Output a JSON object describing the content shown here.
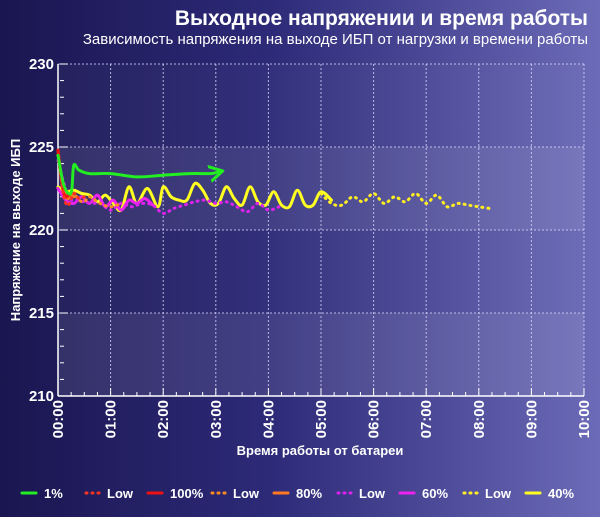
{
  "chart_data": {
    "type": "line",
    "title": "Выходное напряжении и время работы",
    "subtitle": "Зависимость напряжения на выходе ИБП от нагрузки и времени работы",
    "xlabel": "Время работы от батареи",
    "ylabel": "Напряжение на выходе ИБП",
    "x_unit": "hours",
    "xlim": [
      0,
      10
    ],
    "ylim": [
      210,
      230
    ],
    "x_ticks": [
      "00:00",
      "01:00",
      "02:00",
      "03:00",
      "04:00",
      "05:00",
      "06:00",
      "07:00",
      "08:00",
      "09:00",
      "10:00"
    ],
    "y_ticks": [
      210,
      215,
      220,
      225,
      230
    ],
    "grid": true,
    "legend_position": "bottom",
    "series": [
      {
        "name": "1%",
        "color": "#22ee22",
        "style": "solid",
        "end": "arrow",
        "x": [
          0,
          0.1,
          0.2,
          0.26,
          0.3,
          0.4,
          0.6,
          1.0,
          1.5,
          2.0,
          2.5,
          2.9,
          3.05
        ],
        "y": [
          224.5,
          222.8,
          222.2,
          222.4,
          223.9,
          223.6,
          223.4,
          223.4,
          223.2,
          223.3,
          223.4,
          223.4,
          223.5
        ]
      },
      {
        "name": "Low",
        "color": "#ff3322",
        "style": "dotted",
        "x": [
          0,
          0.05,
          0.1,
          0.15,
          0.2,
          0.3,
          0.4,
          0.5
        ],
        "y": [
          224.5,
          223.3,
          222.2,
          221.6,
          221.5,
          222.2,
          221.9,
          222.0
        ]
      },
      {
        "name": "100%",
        "color": "#ee1111",
        "style": "solid",
        "x": [
          0,
          0.05,
          0.1,
          0.15,
          0.2,
          0.25
        ],
        "y": [
          224.8,
          223.5,
          222.3,
          222.0,
          222.1,
          222.2
        ]
      },
      {
        "name": "Low",
        "color": "#ff8a22",
        "style": "dotted",
        "x": [
          0,
          0.1,
          0.2,
          0.3,
          0.4,
          0.5,
          0.6,
          0.8,
          1.0,
          1.2
        ],
        "y": [
          224.5,
          222.6,
          222.0,
          222.2,
          221.8,
          221.7,
          222.0,
          221.6,
          221.4,
          221.6
        ]
      },
      {
        "name": "80%",
        "color": "#ff7722",
        "style": "solid",
        "x": [
          0,
          0.05,
          0.1,
          0.15,
          0.2,
          0.25,
          0.3
        ],
        "y": [
          224.8,
          223.4,
          222.4,
          222.0,
          221.9,
          222.1,
          222.0
        ]
      },
      {
        "name": "Low",
        "color": "#dd22ee",
        "style": "dotted",
        "x": [
          0,
          0.2,
          0.4,
          0.6,
          0.8,
          1.0,
          1.2,
          1.4,
          1.6,
          1.8,
          2.0,
          2.2,
          2.4,
          2.6,
          2.8,
          3.0,
          3.2,
          3.4,
          3.6,
          3.8,
          4.0,
          4.2
        ],
        "y": [
          224.2,
          222.0,
          221.8,
          221.6,
          221.6,
          221.2,
          221.6,
          221.4,
          221.6,
          221.5,
          221.0,
          221.3,
          221.5,
          221.7,
          221.8,
          221.6,
          221.7,
          221.4,
          221.1,
          221.6,
          221.2,
          221.4
        ]
      },
      {
        "name": "60%",
        "color": "#ee22ee",
        "style": "solid",
        "x": [
          0,
          0.15,
          0.3,
          0.45,
          0.6,
          0.75,
          0.9,
          1.05,
          1.2,
          1.35,
          1.5,
          1.65,
          1.8
        ],
        "y": [
          222.5,
          221.8,
          221.6,
          222.0,
          221.6,
          222.1,
          221.4,
          221.8,
          221.2,
          221.8,
          221.6,
          221.9,
          221.5
        ]
      },
      {
        "name": "Low",
        "color": "#ffee22",
        "style": "dotted",
        "x": [
          5.0,
          5.2,
          5.4,
          5.6,
          5.8,
          6.0,
          6.2,
          6.4,
          6.6,
          6.8,
          7.0,
          7.2,
          7.4,
          7.6,
          7.8,
          8.0,
          8.2
        ],
        "y": [
          222.2,
          221.6,
          221.5,
          222.0,
          221.7,
          222.2,
          221.6,
          222.0,
          221.7,
          222.2,
          221.6,
          222.1,
          221.4,
          221.6,
          221.5,
          221.4,
          221.3
        ]
      },
      {
        "name": "40%",
        "color": "#ffff22",
        "style": "solid",
        "x": [
          0,
          0.15,
          0.3,
          0.45,
          0.6,
          0.75,
          0.9,
          1.05,
          1.2,
          1.35,
          1.5,
          1.7,
          1.9,
          2.0,
          2.15,
          2.3,
          2.45,
          2.6,
          2.75,
          2.9,
          3.05,
          3.2,
          3.35,
          3.5,
          3.65,
          3.8,
          3.95,
          4.1,
          4.25,
          4.4,
          4.55,
          4.7,
          4.85,
          5.0,
          5.2
        ],
        "y": [
          222.6,
          222.3,
          222.4,
          222.2,
          222.1,
          221.7,
          222.1,
          221.6,
          221.2,
          222.6,
          221.6,
          222.5,
          221.4,
          222.6,
          222.0,
          221.8,
          221.8,
          222.8,
          222.4,
          221.6,
          221.6,
          222.6,
          221.9,
          221.5,
          222.6,
          221.7,
          221.5,
          222.3,
          221.5,
          221.4,
          222.4,
          221.5,
          221.5,
          222.3,
          221.8
        ]
      }
    ]
  }
}
